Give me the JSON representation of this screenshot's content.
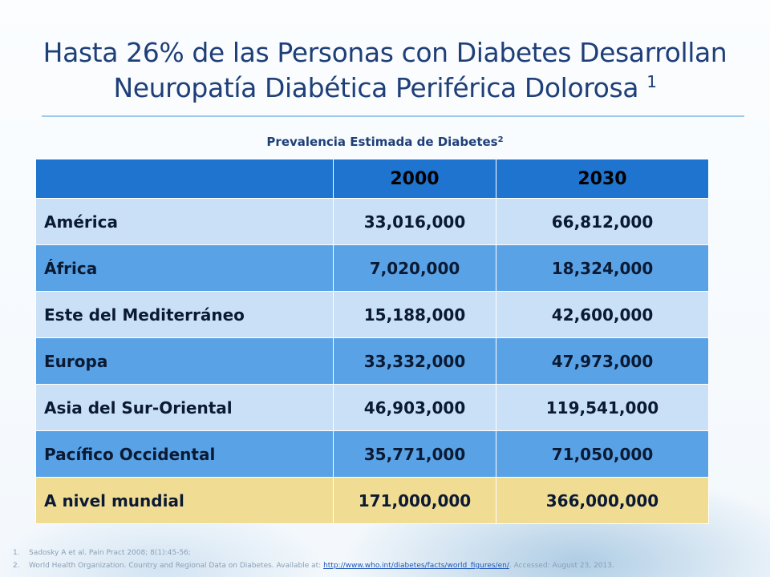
{
  "title": {
    "line1": "Hasta 26% de las Personas con Diabetes Desarrollan",
    "line2": "Neuropatía Diabética Periférica Dolorosa",
    "sup": "1"
  },
  "subtitle": {
    "text": "Prevalencia Estimada de Diabetes",
    "sup": "2"
  },
  "table": {
    "headers": [
      "",
      "2000",
      "2030"
    ],
    "rows": [
      {
        "region": "América",
        "y2000": "33,016,000",
        "y2030": "66,812,000"
      },
      {
        "region": "África",
        "y2000": "7,020,000",
        "y2030": "18,324,000"
      },
      {
        "region": "Este del Mediterráneo",
        "y2000": "15,188,000",
        "y2030": "42,600,000"
      },
      {
        "region": "Europa",
        "y2000": "33,332,000",
        "y2030": "47,973,000"
      },
      {
        "region": "Asia del Sur-Oriental",
        "y2000": "46,903,000",
        "y2030": "119,541,000"
      },
      {
        "region": "Pacífico Occidental",
        "y2000": "35,771,000",
        "y2030": "71,050,000"
      },
      {
        "region": "A nivel mundial",
        "y2000": "171,000,000",
        "y2030": "366,000,000"
      }
    ]
  },
  "references": [
    {
      "num": "1.",
      "text": "Sadosky A et al. Pain Pract 2008; 8(1):45-56;"
    },
    {
      "num": "2.",
      "text": "World Health Organization. Country and Regional Data on Diabetes. Available at:",
      "link": "http://www.who.int/diabetes/facts/world_figures/en/",
      "after": ". Accessed: August 23, 2013."
    }
  ],
  "colors": {
    "header_bg": "#1f74d0",
    "row_light": "#c9e0f7",
    "row_dark": "#5aa2e6",
    "total_row": "#f1dc94",
    "title": "#1e3f78"
  }
}
